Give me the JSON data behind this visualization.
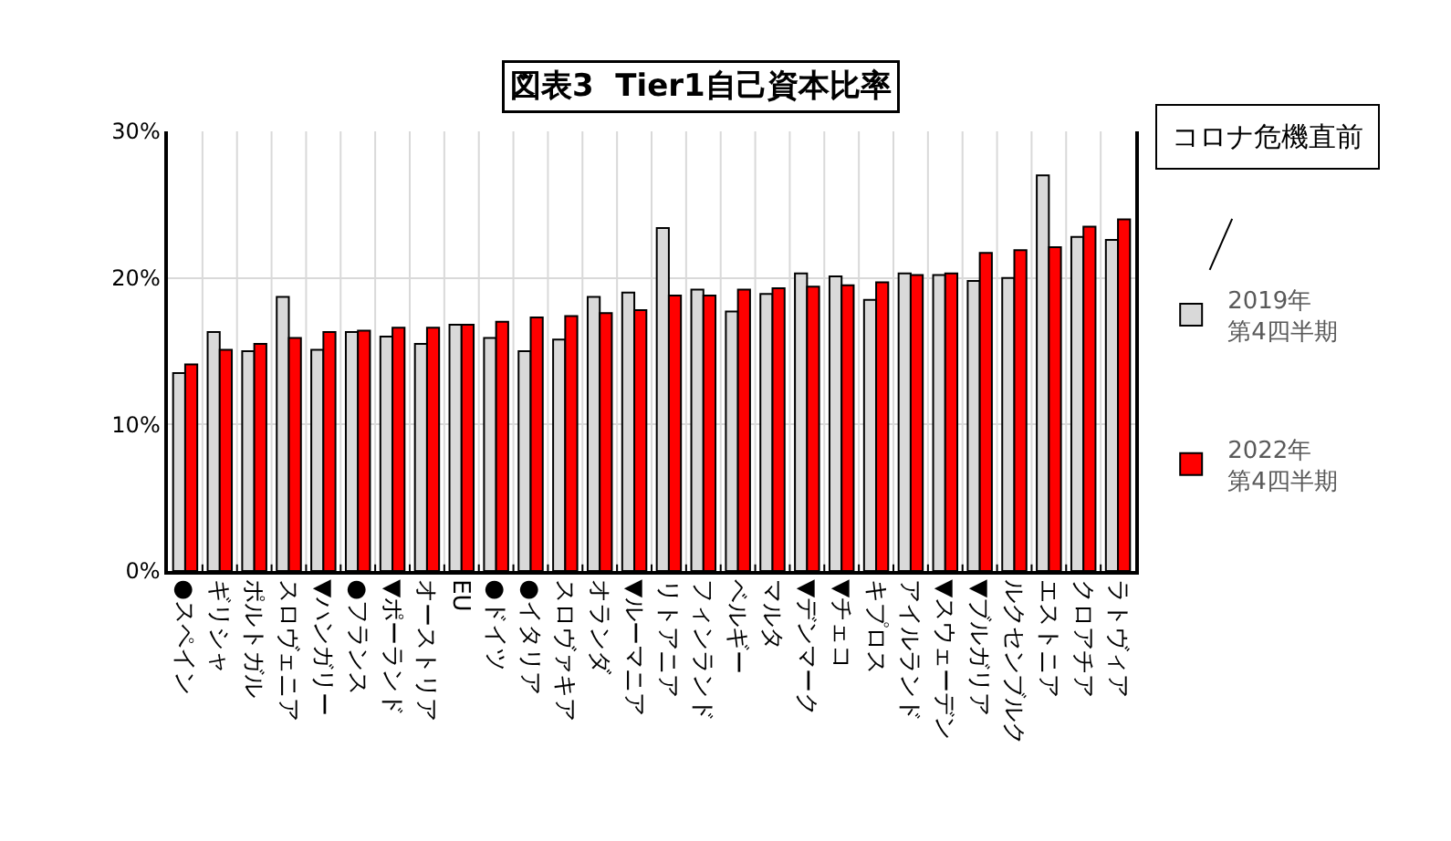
{
  "chart_data": {
    "type": "bar",
    "title": "図表3  Tier1自己資本比率",
    "categories": [
      "●スペイン",
      "ギリシャ",
      "ポルトガル",
      "スロヴェニア",
      "▼ハンガリー",
      "●フランス",
      "▼ポーランド",
      "オーストリア",
      "EU",
      "●ドイツ",
      "●イタリア",
      "スロヴァキア",
      "オランダ",
      "▼ルーマニア",
      "リトアニア",
      "フィンランド",
      "ベルギー",
      "マルタ",
      "▼デンマーク",
      "▼チェコ",
      "キプロス",
      "アイルランド",
      "▼スウェーデン",
      "▼ブルガリア",
      "ルクセンブルク",
      "エストニア",
      "クロアチア",
      "ラトヴィア"
    ],
    "series": [
      {
        "name": "2019年第4四半期",
        "color": "#d9d9d9",
        "values": [
          13.5,
          16.3,
          15.0,
          18.7,
          15.1,
          16.3,
          16.0,
          15.5,
          16.8,
          15.9,
          15.0,
          15.8,
          18.7,
          19.0,
          23.4,
          19.2,
          17.7,
          18.9,
          20.3,
          20.1,
          18.5,
          20.3,
          20.2,
          19.8,
          20.0,
          27.0,
          22.8,
          22.6
        ]
      },
      {
        "name": "2022年第4四半期",
        "color": "#ff0000",
        "values": [
          14.1,
          15.1,
          15.5,
          15.9,
          16.3,
          16.4,
          16.6,
          16.6,
          16.8,
          17.0,
          17.3,
          17.4,
          17.6,
          17.8,
          18.8,
          18.8,
          19.2,
          19.3,
          19.4,
          19.5,
          19.7,
          20.2,
          20.3,
          21.7,
          21.9,
          22.1,
          23.5,
          24.0
        ]
      }
    ],
    "ylim": [
      0,
      30
    ],
    "yticks": [
      {
        "value": 0,
        "label": "0%"
      },
      {
        "value": 10,
        "label": "10%"
      },
      {
        "value": 20,
        "label": "20%"
      },
      {
        "value": 30,
        "label": "30%"
      }
    ],
    "grid": true,
    "legend": "right",
    "annotations": [
      "コロナ危機直前"
    ]
  }
}
